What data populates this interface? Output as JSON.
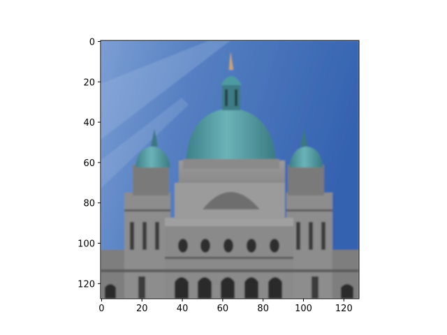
{
  "chart_data": {
    "type": "image",
    "xlim": [
      -0.5,
      127.5
    ],
    "ylim": [
      127.5,
      -0.5
    ],
    "x_ticks": [
      "0",
      "20",
      "40",
      "60",
      "80",
      "100",
      "120"
    ],
    "y_ticks": [
      "0",
      "20",
      "40",
      "60",
      "80",
      "100",
      "120"
    ],
    "grid": false,
    "legend": "none"
  },
  "image": {
    "description": "Photo of a domed stone legislative building against blue sky",
    "resolution": [
      128,
      128
    ],
    "sky_color": "#3a64b0",
    "sky_highlight": "#8fb0dc",
    "dome_color": "#4e9aa2",
    "stone_color": "#8c8c8c",
    "dark_stone": "#4a4a4a",
    "statue_color": "#c8a86a"
  }
}
